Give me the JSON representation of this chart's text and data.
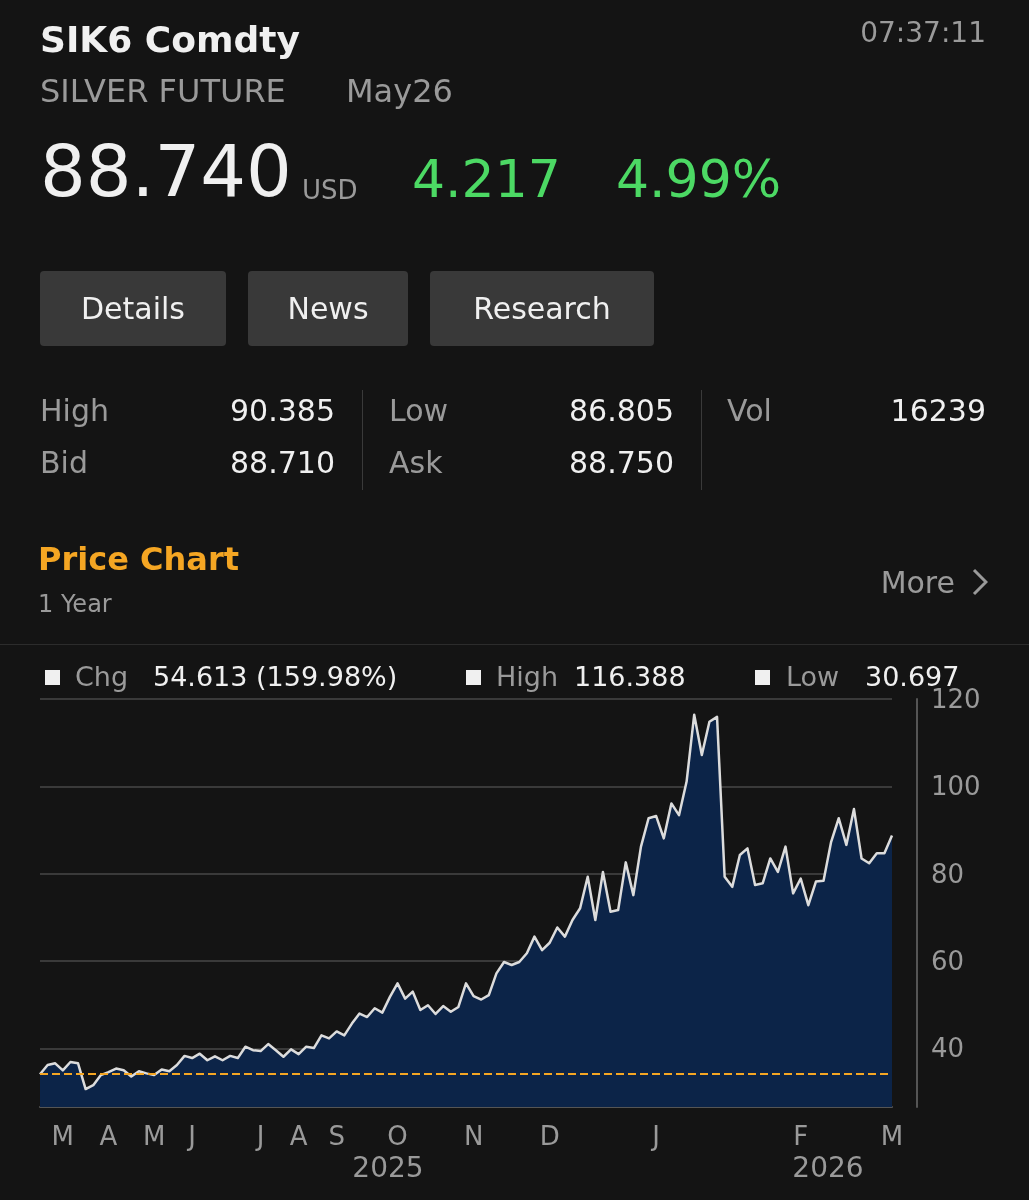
{
  "chart_data": {
    "type": "area",
    "title": "SIK6 Comdty",
    "subtitle": "SILVER FUTURE",
    "annotations": [
      "07:37:11",
      "May26",
      "88.740",
      "USD",
      "4.217",
      "4.99%",
      "Details",
      "News",
      "Research",
      "High",
      "90.385",
      "Low",
      "86.805",
      "Vol",
      "16239",
      "Bid",
      "88.710",
      "Ask",
      "88.750",
      "Price Chart",
      "1 Year",
      "More",
      "Chg",
      "54.613 (159.98%)",
      "High",
      "116.388",
      "Low",
      "30.697",
      "2025",
      "2026"
    ],
    "categories": [
      null,
      null,
      null,
      "M",
      null,
      null,
      null,
      null,
      null,
      "A",
      null,
      null,
      null,
      null,
      null,
      "M",
      null,
      null,
      null,
      null,
      "J",
      null,
      null,
      null,
      null,
      null,
      null,
      null,
      null,
      "J",
      null,
      null,
      null,
      null,
      "A",
      null,
      null,
      null,
      null,
      "S",
      null,
      null,
      null,
      null,
      null,
      null,
      null,
      "O",
      null,
      null,
      null,
      null,
      null,
      null,
      null,
      null,
      null,
      "N",
      null,
      null,
      null,
      null,
      null,
      null,
      null,
      null,
      null,
      "D",
      null,
      null,
      null,
      null,
      null,
      null,
      null,
      null,
      null,
      null,
      null,
      null,
      null,
      "J",
      null,
      null,
      null,
      null,
      null,
      null,
      null,
      null,
      null,
      null,
      null,
      null,
      null,
      null,
      null,
      null,
      null,
      null,
      "F",
      null,
      null,
      null,
      null,
      null,
      null,
      null,
      null,
      null,
      null,
      null,
      "M"
    ],
    "values": [
      34.1,
      36.2,
      36.6,
      35.0,
      36.9,
      36.6,
      30.7,
      31.6,
      33.9,
      34.6,
      35.4,
      35.0,
      33.6,
      34.8,
      34.3,
      33.9,
      35.2,
      34.8,
      36.2,
      38.3,
      37.8,
      38.8,
      37.3,
      38.2,
      37.3,
      38.3,
      37.8,
      40.4,
      39.6,
      39.4,
      41.0,
      39.6,
      38.1,
      39.8,
      38.7,
      40.4,
      40.1,
      43.0,
      42.3,
      43.9,
      43.0,
      45.7,
      48.0,
      47.2,
      49.2,
      48.2,
      51.8,
      54.9,
      51.4,
      53.0,
      48.8,
      49.9,
      47.9,
      49.7,
      48.4,
      49.5,
      54.9,
      52.0,
      51.2,
      52.2,
      57.2,
      59.8,
      59.1,
      59.8,
      61.8,
      65.6,
      62.5,
      64.2,
      67.7,
      65.6,
      69.4,
      72.1,
      79.3,
      69.4,
      80.4,
      71.3,
      71.7,
      82.6,
      75.1,
      86.2,
      92.7,
      93.2,
      88.1,
      96.1,
      93.4,
      101.1,
      116.4,
      107.2,
      114.8,
      115.9,
      79.3,
      77.0,
      84.3,
      85.8,
      77.4,
      77.8,
      83.5,
      80.4,
      86.2,
      75.5,
      78.9,
      72.8,
      78.2,
      78.4,
      87.3,
      92.7,
      86.6,
      94.8,
      83.5,
      82.4,
      84.7,
      84.7,
      88.74
    ],
    "color": "#0c2448",
    "ylim": [
      26.6,
      120
    ],
    "yticks": [
      40,
      60,
      80,
      100,
      120
    ],
    "grid": "y",
    "ref_lines": [
      {
        "axis": "y",
        "value": 34.1,
        "color": "#f5a623",
        "line_style": "dashed"
      }
    ]
  }
}
